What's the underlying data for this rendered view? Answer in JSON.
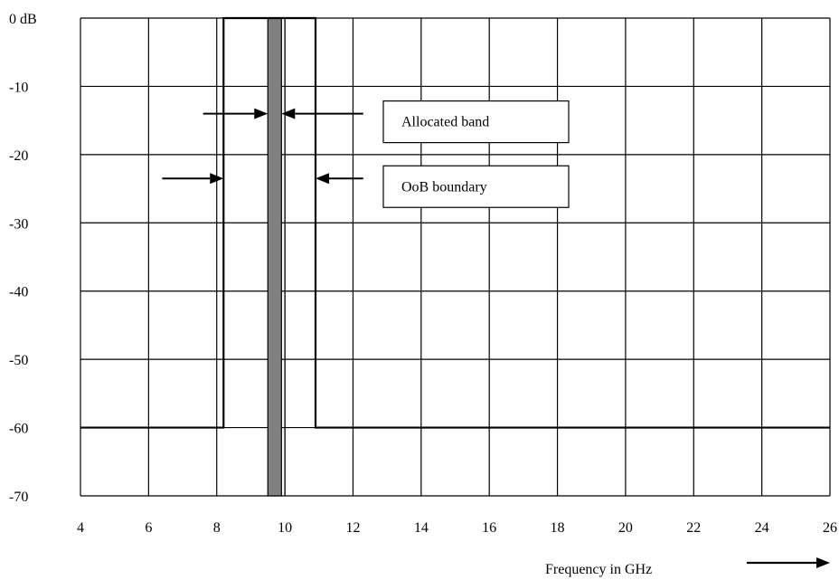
{
  "chart_data": {
    "type": "line",
    "title": "",
    "xlabel": "Frequency in GHz",
    "ylabel": "",
    "xlim": [
      4,
      26
    ],
    "ylim": [
      -70,
      0
    ],
    "x_ticks": [
      4,
      6,
      8,
      10,
      12,
      14,
      16,
      18,
      20,
      22,
      24,
      26
    ],
    "x_tick_labels": [
      "4",
      "6",
      "8",
      "10",
      "12",
      "14",
      "16",
      "18",
      "20",
      "22",
      "24",
      "26"
    ],
    "y_ticks": [
      0,
      -10,
      -20,
      -30,
      -40,
      -50,
      -60,
      -70
    ],
    "y_tick_labels": [
      "0 dB",
      "-10",
      "-20",
      "-30",
      "-40",
      "-50",
      "-60",
      "-70"
    ],
    "grid": true,
    "grid_x_step": 2,
    "grid_y_step": 10,
    "series": [
      {
        "values": [
          {
            "x": 4,
            "y": -60
          },
          {
            "x": 8.2,
            "y": -60
          },
          {
            "x": 8.2,
            "y": 0
          },
          {
            "x": 10.9,
            "y": 0
          },
          {
            "x": 10.9,
            "y": -60
          },
          {
            "x": 26,
            "y": -60
          }
        ],
        "color": "#000000"
      }
    ],
    "allocated_band": {
      "x_start": 9.5,
      "x_end": 9.9,
      "y_top": 0,
      "y_bottom": -70,
      "color": "#808080"
    },
    "extra_vertical_lines": [
      10.0
    ],
    "annotations": [
      {
        "text": "Allocated band",
        "arrow_y": -14,
        "left_arrow_from_x": 7.6,
        "left_arrow_to_x": 9.5,
        "right_arrow_from_x": 12.3,
        "right_arrow_to_x": 9.9
      },
      {
        "text": "OoB boundary",
        "arrow_y": -23.5,
        "left_arrow_from_x": 6.4,
        "left_arrow_to_x": 8.2,
        "right_arrow_from_x": 12.3,
        "right_arrow_to_x": 10.9
      }
    ]
  }
}
